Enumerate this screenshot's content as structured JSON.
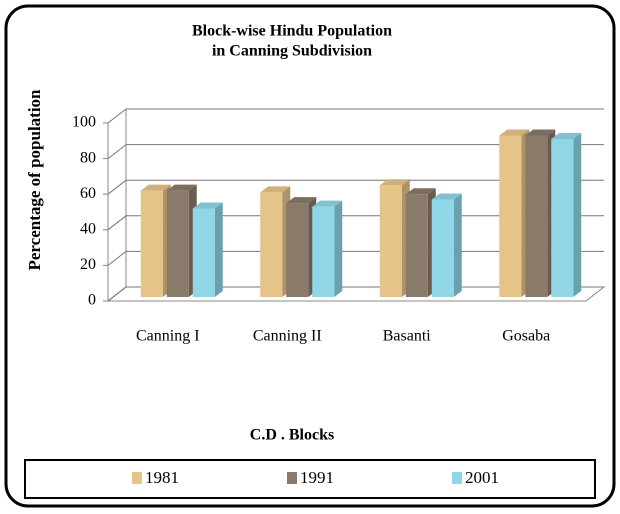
{
  "chart_data": {
    "type": "bar",
    "title": "Block-wise Hindu Population",
    "subtitle": "in Canning Subdivision",
    "y_label": "Percentage of population",
    "x_label": "C.D . Blocks",
    "categories": [
      "Canning I",
      "Canning II",
      "Basanti",
      "Gosaba"
    ],
    "series": [
      {
        "name": "1981",
        "color": "#e6c487",
        "values": [
          62,
          61,
          65,
          93
        ]
      },
      {
        "name": "1991",
        "color": "#8a7a6a",
        "values": [
          62,
          55,
          60,
          93
        ]
      },
      {
        "name": "2001",
        "color": "#8fd6e6",
        "values": [
          52,
          53,
          57,
          91
        ]
      }
    ],
    "ylim": [
      0,
      100
    ],
    "yticks": [
      0,
      20,
      40,
      60,
      80,
      100
    ],
    "grid": true,
    "legend": "bottom"
  }
}
